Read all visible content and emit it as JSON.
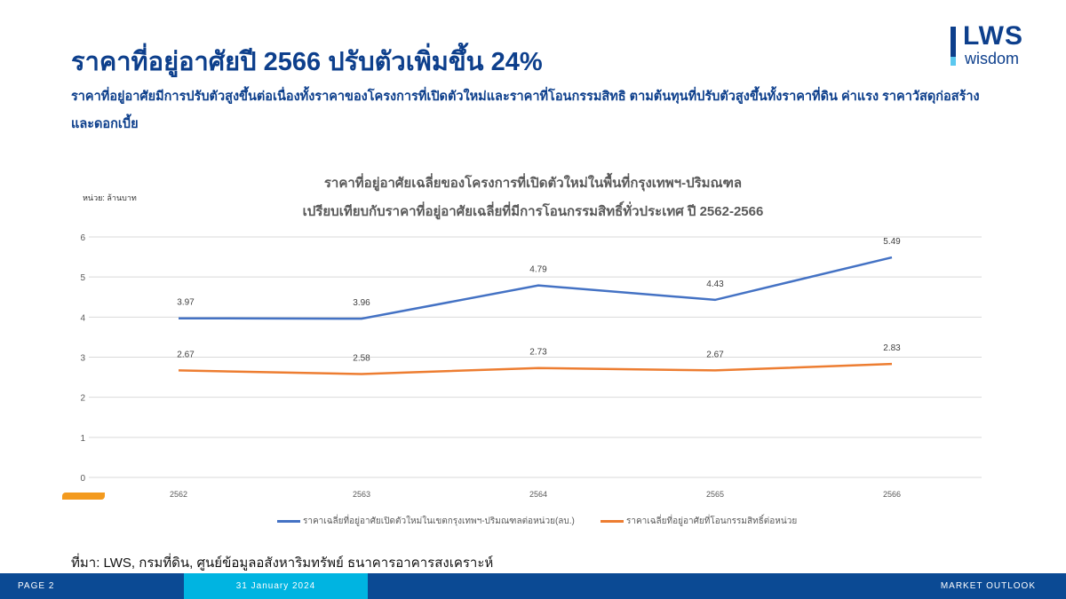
{
  "header": {
    "title": "ราคาที่อยู่อาศัยปี 2566 ปรับตัวเพิ่มขึ้น 24%",
    "subtitle": "ราคาที่อยู่อาศัยมีการปรับตัวสูงขึ้นต่อเนื่องทั้งราคาของโครงการที่เปิดตัวใหม่และราคาที่โอนกรรมสิทธิ ตามต้นทุนที่ปรับตัวสูงขึ้นทั้งราคาที่ดิน ค่าแรง ราคาวัสดุก่อสร้างและดอกเบี้ย"
  },
  "logo": {
    "brand": "LWS",
    "tagline": "wisdom"
  },
  "chart_data": {
    "type": "line",
    "title_line1": "ราคาที่อยู่อาศัยเฉลี่ยของโครงการที่เปิดตัวใหม่ในพื้นที่กรุงเทพฯ-ปริมณฑล",
    "title_line2": "เปรียบเทียบกับราคาที่อยู่อาศัยเฉลี่ยที่มีการโอนกรรมสิทธิ์ทั่วประเทศ ปี 2562-2566",
    "ylabel": "หน่วย: ล้านบาท",
    "ylim": [
      0,
      6
    ],
    "yticks": [
      "0",
      "1",
      "2",
      "3",
      "4",
      "5",
      "6"
    ],
    "categories": [
      "2562",
      "2563",
      "2564",
      "2565",
      "2566"
    ],
    "grid": true,
    "legend": "bottom",
    "series": [
      {
        "name": "ราคาเฉลี่ยที่อยู่อาศัยเปิดตัวใหม่ในเขตกรุงเทพฯ-ปริมณฑลต่อหน่วย(ลบ.)",
        "color": "#4472c4",
        "values": [
          3.97,
          3.96,
          4.79,
          4.43,
          5.49
        ]
      },
      {
        "name": "ราคาเฉลี่ยที่อยู่อาศัยที่โอนกรรมสิทธิ์ต่อหน่วย",
        "color": "#ed7d31",
        "values": [
          2.67,
          2.58,
          2.73,
          2.67,
          2.83
        ]
      }
    ]
  },
  "source": "ที่มา: LWS, กรมที่ดิน, ศูนย์ข้อมูลอสังหาริมทรัพย์ ธนาคารอาคารสงเคราะห์",
  "footer": {
    "page": "PAGE 2",
    "date": "31 January 2024",
    "section": "MARKET OUTLOOK"
  }
}
